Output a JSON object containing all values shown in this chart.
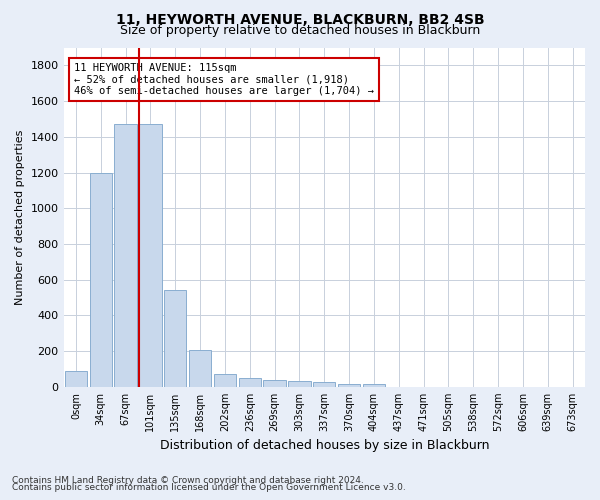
{
  "title1": "11, HEYWORTH AVENUE, BLACKBURN, BB2 4SB",
  "title2": "Size of property relative to detached houses in Blackburn",
  "xlabel": "Distribution of detached houses by size in Blackburn",
  "ylabel": "Number of detached properties",
  "categories": [
    "0sqm",
    "34sqm",
    "67sqm",
    "101sqm",
    "135sqm",
    "168sqm",
    "202sqm",
    "236sqm",
    "269sqm",
    "303sqm",
    "337sqm",
    "370sqm",
    "404sqm",
    "437sqm",
    "471sqm",
    "505sqm",
    "538sqm",
    "572sqm",
    "606sqm",
    "639sqm",
    "673sqm"
  ],
  "values": [
    90,
    1200,
    1470,
    1470,
    540,
    205,
    70,
    48,
    40,
    30,
    25,
    15,
    15,
    0,
    0,
    0,
    0,
    0,
    0,
    0,
    0
  ],
  "bar_color": "#c8d8ec",
  "bar_edge_color": "#8aaed0",
  "vline_index": 3,
  "vline_color": "#cc0000",
  "annotation_title": "11 HEYWORTH AVENUE: 115sqm",
  "annotation_line1": "← 52% of detached houses are smaller (1,918)",
  "annotation_line2": "46% of semi-detached houses are larger (1,704) →",
  "annotation_box_color": "#cc0000",
  "annotation_bg": "#ffffff",
  "ylim": [
    0,
    1900
  ],
  "yticks": [
    0,
    200,
    400,
    600,
    800,
    1000,
    1200,
    1400,
    1600,
    1800
  ],
  "footnote1": "Contains HM Land Registry data © Crown copyright and database right 2024.",
  "footnote2": "Contains public sector information licensed under the Open Government Licence v3.0.",
  "background_color": "#e8eef8",
  "plot_bg_color": "#ffffff",
  "grid_color": "#c8d0dc"
}
